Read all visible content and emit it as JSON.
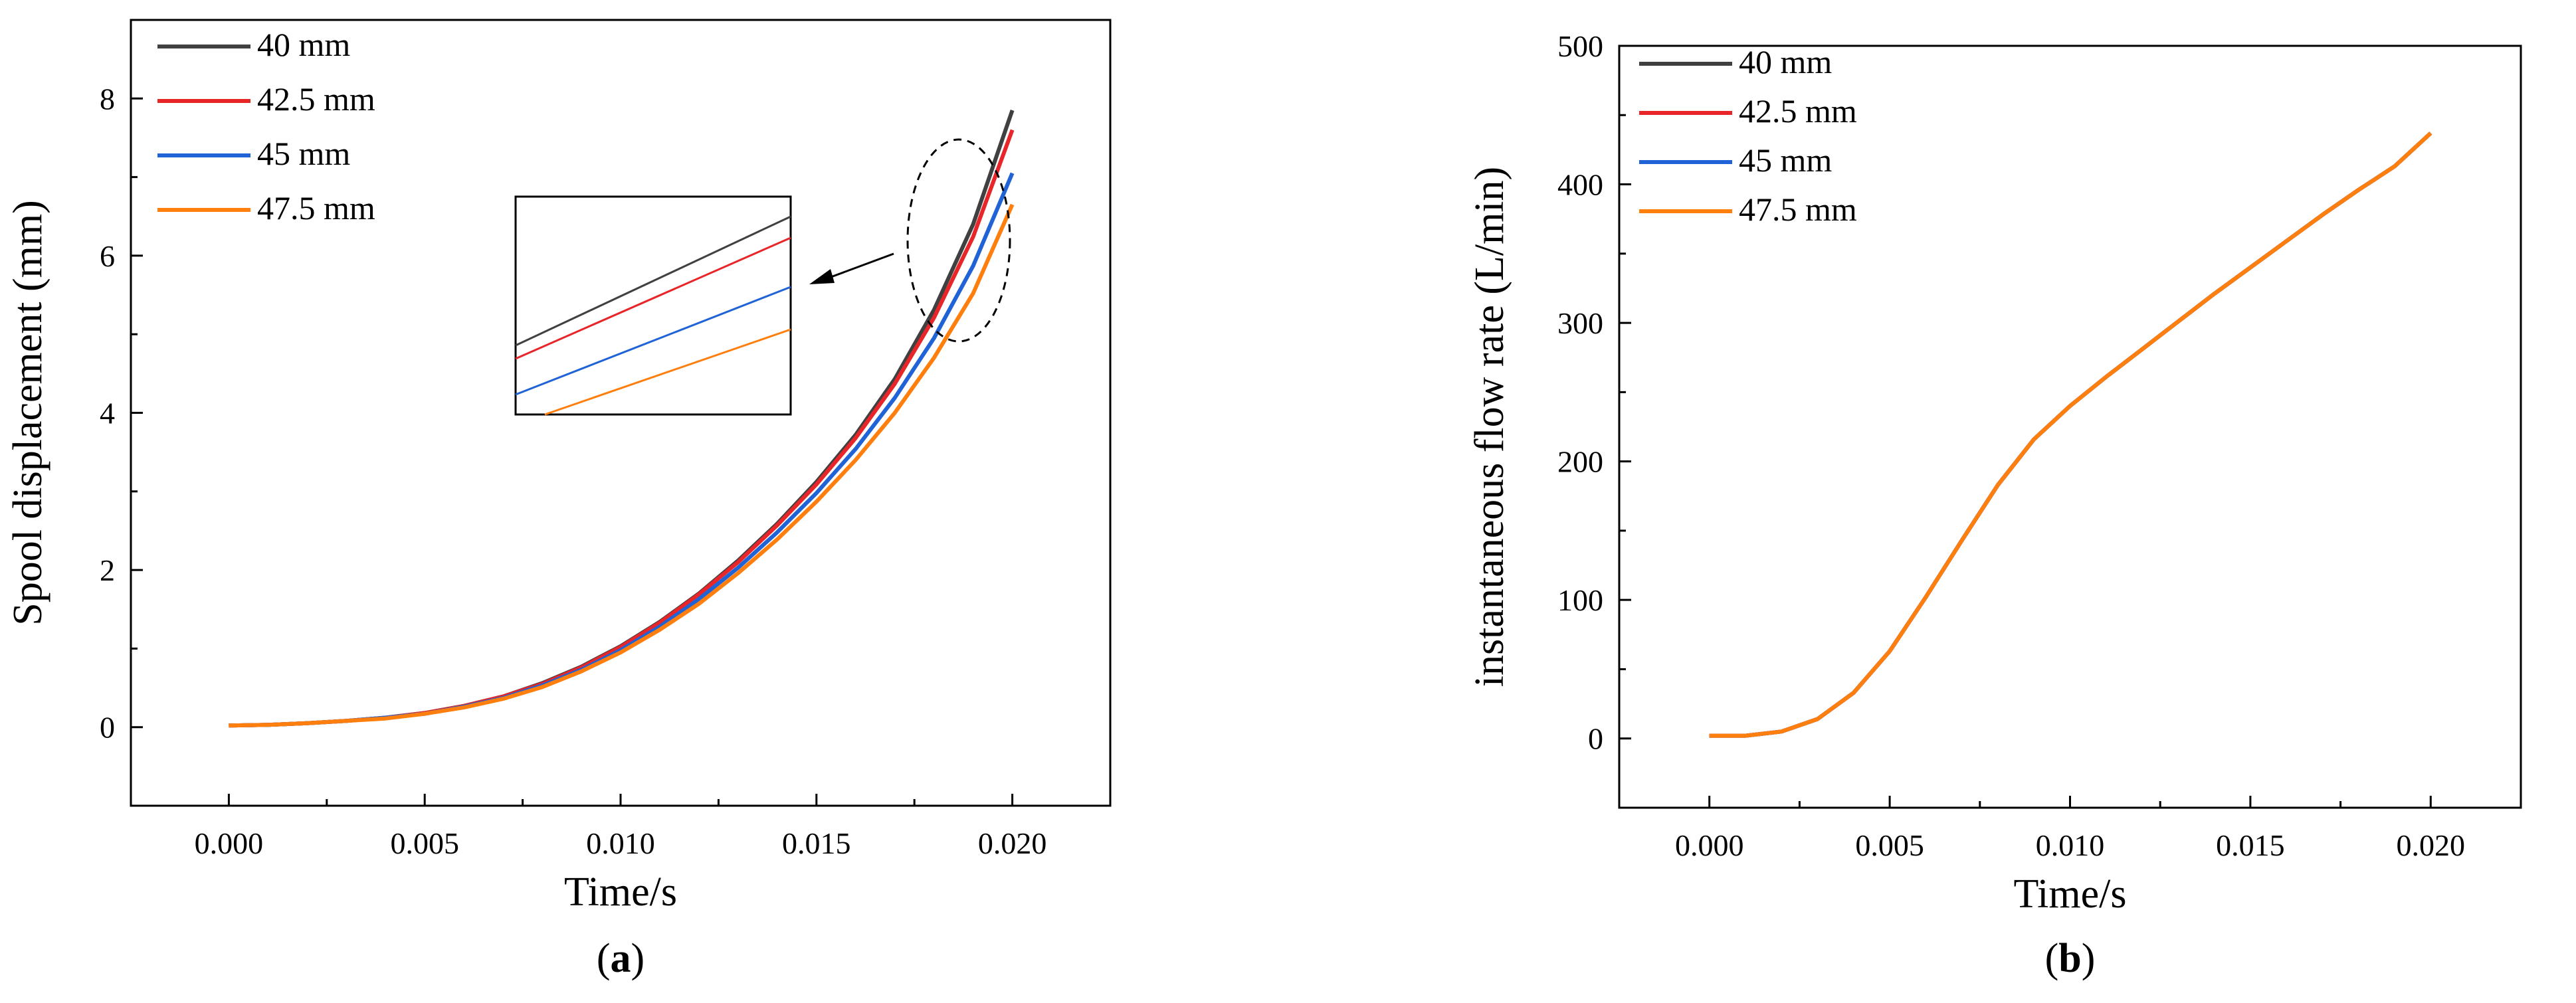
{
  "chart_data": [
    {
      "id": "a",
      "type": "line",
      "panel_label": "a",
      "xlabel": "Time/s",
      "ylabel": "Spool displacement (mm)",
      "xlim": [
        -0.0025,
        0.0225
      ],
      "ylim": [
        -1,
        9
      ],
      "xticks": [
        0.0,
        0.005,
        0.01,
        0.015,
        0.02
      ],
      "xtick_labels": [
        "0.000",
        "0.005",
        "0.010",
        "0.015",
        "0.020"
      ],
      "yticks": [
        0,
        2,
        4,
        6,
        8
      ],
      "ytick_labels": [
        "0",
        "2",
        "4",
        "6",
        "8"
      ],
      "legend_position": "top-left",
      "x": [
        0.0,
        0.001,
        0.002,
        0.003,
        0.004,
        0.005,
        0.006,
        0.007,
        0.008,
        0.009,
        0.01,
        0.011,
        0.012,
        0.013,
        0.014,
        0.015,
        0.016,
        0.017,
        0.018,
        0.019,
        0.02
      ],
      "series": [
        {
          "name": "40 mm",
          "color": "#404040",
          "values": [
            0.02,
            0.03,
            0.05,
            0.08,
            0.12,
            0.18,
            0.27,
            0.39,
            0.56,
            0.77,
            1.03,
            1.34,
            1.7,
            2.12,
            2.59,
            3.12,
            3.72,
            4.43,
            5.31,
            6.4,
            7.85
          ]
        },
        {
          "name": "42.5 mm",
          "color": "#e8262a",
          "values": [
            0.02,
            0.03,
            0.05,
            0.08,
            0.12,
            0.18,
            0.27,
            0.39,
            0.55,
            0.76,
            1.02,
            1.33,
            1.69,
            2.1,
            2.57,
            3.09,
            3.68,
            4.37,
            5.21,
            6.24,
            7.6
          ]
        },
        {
          "name": "45 mm",
          "color": "#1f63d6",
          "values": [
            0.02,
            0.03,
            0.05,
            0.08,
            0.12,
            0.17,
            0.26,
            0.37,
            0.53,
            0.73,
            0.98,
            1.28,
            1.63,
            2.03,
            2.48,
            2.98,
            3.54,
            4.19,
            4.95,
            5.87,
            7.05
          ]
        },
        {
          "name": "47.5 mm",
          "color": "#ff7f0e",
          "values": [
            0.02,
            0.03,
            0.05,
            0.08,
            0.11,
            0.17,
            0.25,
            0.36,
            0.51,
            0.71,
            0.95,
            1.24,
            1.57,
            1.96,
            2.39,
            2.87,
            3.4,
            4.0,
            4.7,
            5.52,
            6.65
          ]
        }
      ],
      "annotations": [
        "dashed ellipse around curve ends near t=0.019 s",
        "arrow pointing to inset box",
        "inset: zoomed view of the four diverging lines"
      ]
    },
    {
      "id": "b",
      "type": "line",
      "panel_label": "b",
      "xlabel": "Time/s",
      "ylabel": "instantaneous flow rate (L/min)",
      "xlim": [
        -0.0025,
        0.0225
      ],
      "ylim": [
        -50,
        500
      ],
      "xticks": [
        0.0,
        0.005,
        0.01,
        0.015,
        0.02
      ],
      "xtick_labels": [
        "0.000",
        "0.005",
        "0.010",
        "0.015",
        "0.020"
      ],
      "yticks": [
        0,
        100,
        200,
        300,
        400,
        500
      ],
      "ytick_labels": [
        "0",
        "100",
        "200",
        "300",
        "400",
        "500"
      ],
      "legend_position": "top-left",
      "x": [
        0.0,
        0.001,
        0.002,
        0.003,
        0.004,
        0.005,
        0.006,
        0.007,
        0.008,
        0.009,
        0.01,
        0.011,
        0.012,
        0.013,
        0.014,
        0.015,
        0.016,
        0.017,
        0.018,
        0.019,
        0.02
      ],
      "series": [
        {
          "name": "40 mm",
          "color": "#404040",
          "values": [
            2,
            2,
            5,
            14,
            33,
            63,
            102,
            143,
            183,
            216,
            240,
            261,
            281,
            301,
            321,
            340,
            359,
            378,
            396,
            413,
            437
          ]
        },
        {
          "name": "42.5 mm",
          "color": "#e8262a",
          "values": [
            2,
            2,
            5,
            14,
            33,
            63,
            102,
            143,
            183,
            216,
            240,
            261,
            281,
            301,
            321,
            340,
            359,
            378,
            396,
            413,
            437
          ]
        },
        {
          "name": "45 mm",
          "color": "#1f63d6",
          "values": [
            2,
            2,
            5,
            14,
            33,
            63,
            102,
            143,
            183,
            216,
            240,
            261,
            281,
            301,
            321,
            340,
            359,
            378,
            396,
            413,
            437
          ]
        },
        {
          "name": "47.5 mm",
          "color": "#ff7f0e",
          "values": [
            2,
            2,
            5,
            14,
            33,
            63,
            102,
            143,
            183,
            216,
            240,
            261,
            281,
            301,
            321,
            340,
            359,
            378,
            396,
            413,
            437
          ]
        }
      ]
    }
  ]
}
